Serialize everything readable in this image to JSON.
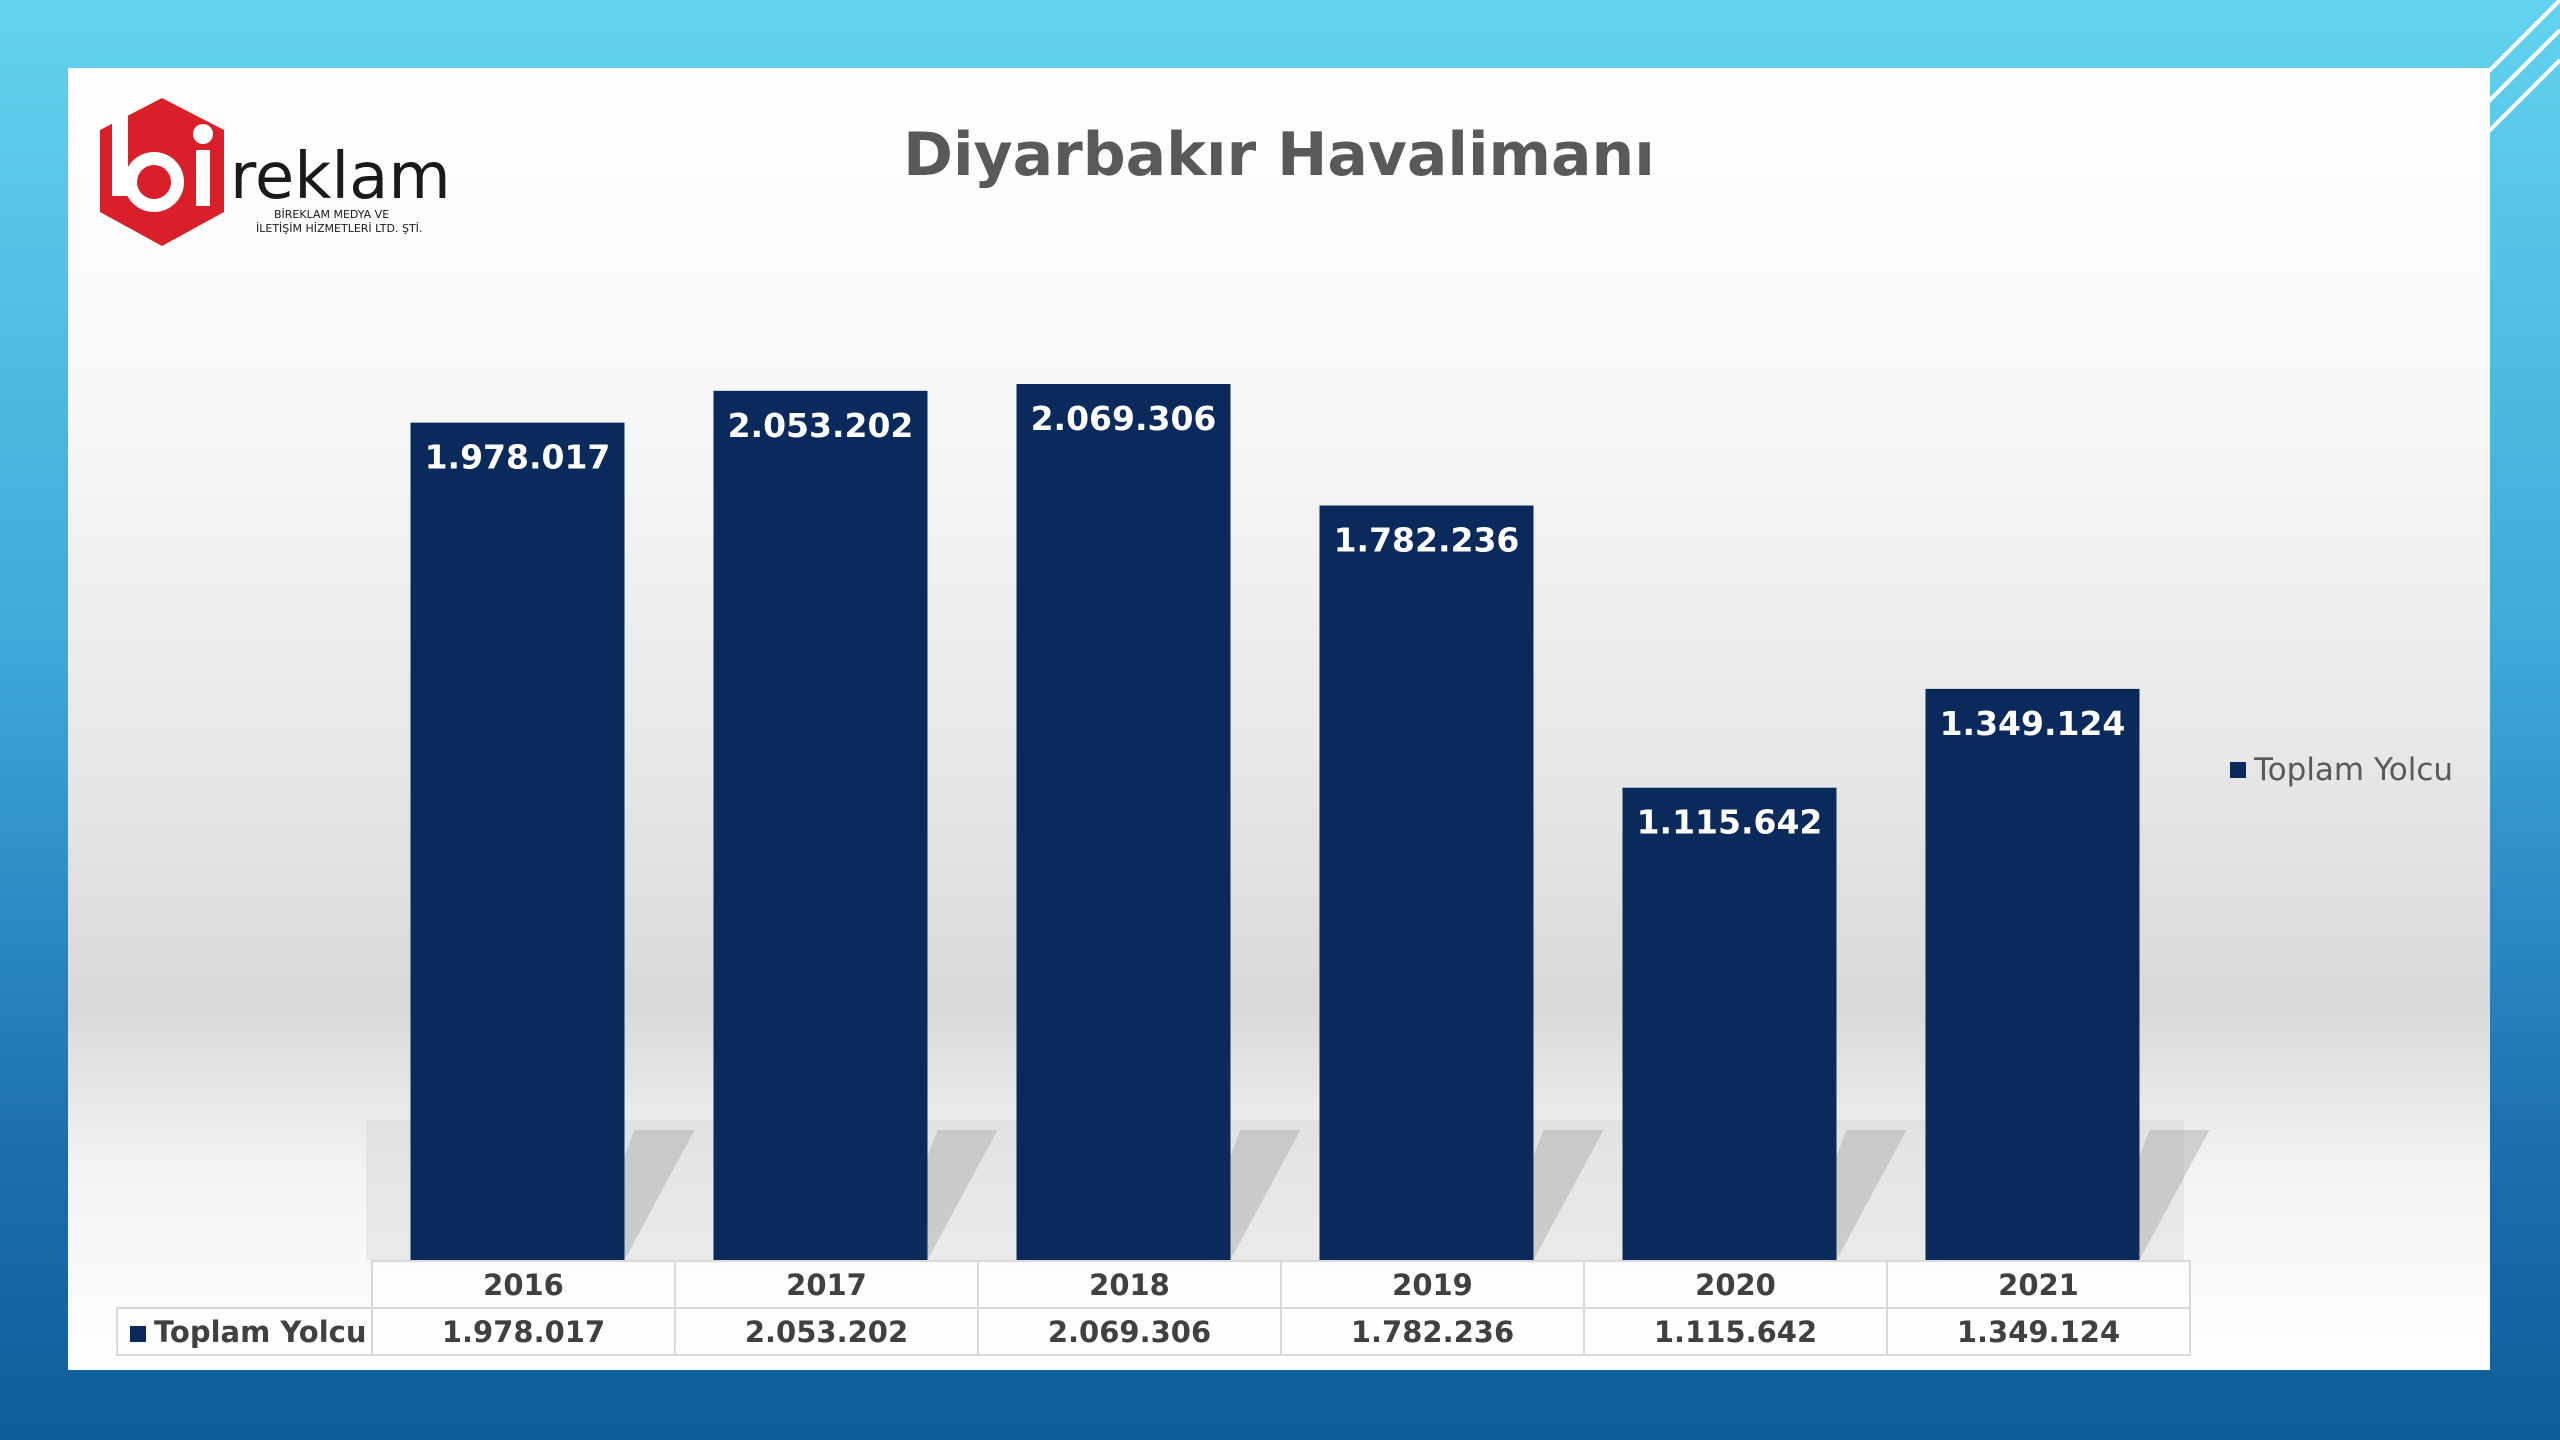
{
  "logo": {
    "wordmark": "reklam",
    "line1": "BİREKLAM MEDYA VE",
    "line2": "İLETİŞİM HİZMETLERİ LTD. ŞTİ."
  },
  "colors": {
    "bar": "#0a2a5c",
    "title": "#595959",
    "logo_red": "#d9202a"
  },
  "chart_data": {
    "type": "bar",
    "title": "Diyarbakır Havalimanı",
    "categories": [
      "2016",
      "2017",
      "2018",
      "2019",
      "2020",
      "2021"
    ],
    "series": [
      {
        "name": "Toplam Yolcu",
        "values": [
          1978017,
          2053202,
          2069306,
          1782236,
          1115642,
          1349124
        ],
        "labels": [
          "1.978.017",
          "2.053.202",
          "2.069.306",
          "1.782.236",
          "1.115.642",
          "1.349.124"
        ]
      }
    ],
    "ylim": [
      0,
      2100000
    ],
    "grid": false,
    "legend": "right",
    "data_table": true
  }
}
